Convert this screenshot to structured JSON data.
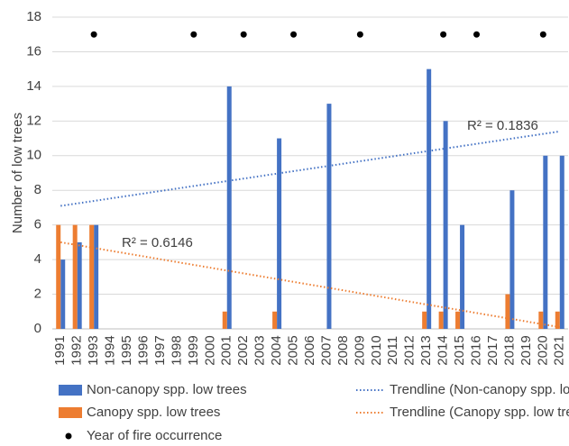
{
  "chart_data": {
    "type": "bar",
    "y_label": "Number of low trees",
    "categories": [
      "1991",
      "1992",
      "1993",
      "1994",
      "1995",
      "1996",
      "1997",
      "1998",
      "1999",
      "2000",
      "2001",
      "2002",
      "2003",
      "2004",
      "2005",
      "2006",
      "2007",
      "2008",
      "2009",
      "2010",
      "2011",
      "2012",
      "2013",
      "2014",
      "2015",
      "2016",
      "2017",
      "2018",
      "2019",
      "2020",
      "2021"
    ],
    "series": [
      {
        "name": "Non-canopy spp. low trees",
        "color": "#4472c4",
        "values": [
          4,
          5,
          6,
          0,
          0,
          0,
          0,
          0,
          0,
          0,
          14,
          0,
          0,
          11,
          0,
          0,
          13,
          0,
          0,
          0,
          0,
          0,
          15,
          12,
          6,
          0,
          0,
          8,
          0,
          10,
          10
        ]
      },
      {
        "name": "Canopy spp. low trees",
        "color": "#ed7d31",
        "values": [
          6,
          6,
          6,
          0,
          0,
          0,
          0,
          0,
          0,
          0,
          1,
          0,
          0,
          1,
          0,
          0,
          0,
          0,
          0,
          0,
          0,
          0,
          1,
          1,
          1,
          0,
          0,
          2,
          0,
          1,
          1
        ]
      }
    ],
    "trendlines": [
      {
        "name": "Trendline (Non-canopy spp. low trees)",
        "color": "#4472c4",
        "x": [
          "1991",
          "2021"
        ],
        "values": [
          7.1,
          11.4
        ],
        "annotation": "R² = 0.1836"
      },
      {
        "name": "Trendline (Canopy spp. low trees)",
        "color": "#ed7d31",
        "x": [
          "1991",
          "2021"
        ],
        "values": [
          5.0,
          0.1
        ],
        "annotation": "R² = 0.6146"
      }
    ],
    "fire": {
      "name": "Year of fire occurrence",
      "color": "#000000",
      "x": [
        "1993",
        "1999",
        "2002",
        "2005",
        "2009",
        "2014",
        "2016",
        "2020"
      ],
      "values": [
        17,
        17,
        17,
        17,
        17,
        17,
        17,
        17
      ]
    },
    "ylim": [
      0,
      18
    ],
    "yticks": [
      0,
      2,
      4,
      6,
      8,
      10,
      12,
      14,
      16,
      18
    ],
    "grid": true
  }
}
